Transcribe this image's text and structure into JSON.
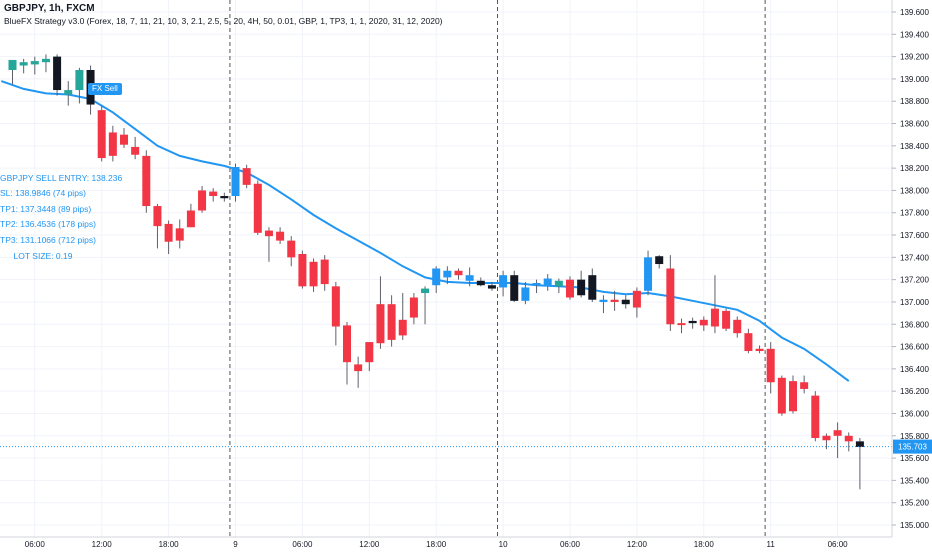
{
  "header": {
    "symbol_line": "GBPJPY, 1h, FXCM",
    "strategy_line": "BlueFX Strategy v3.0 (Forex, 18, 7, 11, 21, 10, 3, 2.1, 2.5, 5, 20, 4H, 50, 0.01, GBP, 1, TP3, 1, 1, 2020, 31, 12, 2020)"
  },
  "signal": {
    "label": "FX Sell"
  },
  "strategy_panel": {
    "entry": "GBPJPY SELL ENTRY: 138.236",
    "sl": "SL: 138.9846 (74 pips)",
    "tp1": "TP1: 137.3448 (89 pips)",
    "tp2": "TP2: 136.4536 (178 pips)",
    "tp3": "TP3: 131.1066 (712 pips)",
    "lot": "LOT SIZE: 0.19"
  },
  "colors": {
    "bull": "#26a69a",
    "bear": "#f23645",
    "neutral": "#131722",
    "highlight": "#2196f3",
    "ma": "#2196f3",
    "price_line": "#2196f3",
    "grid": "#e6e6e6"
  },
  "price_tag": {
    "value": "135.703"
  },
  "chart_data": {
    "type": "candlestick",
    "ylim": [
      134.85,
      139.72
    ],
    "y_ticks": [
      "139.600",
      "139.400",
      "139.200",
      "139.000",
      "138.800",
      "138.600",
      "138.400",
      "138.200",
      "138.000",
      "137.800",
      "137.600",
      "137.400",
      "137.200",
      "137.000",
      "136.800",
      "136.600",
      "136.400",
      "136.200",
      "136.000",
      "135.800",
      "135.600",
      "135.400",
      "135.200",
      "135.000"
    ],
    "x_ticks": [
      {
        "label": "06:00",
        "bar": 2
      },
      {
        "label": "12:00",
        "bar": 8
      },
      {
        "label": "18:00",
        "bar": 14
      },
      {
        "label": "9",
        "bar": 20
      },
      {
        "label": "06:00",
        "bar": 26
      },
      {
        "label": "12:00",
        "bar": 32
      },
      {
        "label": "18:00",
        "bar": 38
      },
      {
        "label": "10",
        "bar": 44
      },
      {
        "label": "06:00",
        "bar": 50
      },
      {
        "label": "12:00",
        "bar": 56
      },
      {
        "label": "18:00",
        "bar": 62
      },
      {
        "label": "11",
        "bar": 68
      },
      {
        "label": "06:00",
        "bar": 74
      }
    ],
    "day_separators": [
      19.5,
      43.5,
      67.5
    ],
    "current_price": 135.703,
    "candles": [
      {
        "o": 139.08,
        "h": 139.14,
        "l": 138.95,
        "c": 139.17,
        "k": "up"
      },
      {
        "o": 139.12,
        "h": 139.18,
        "l": 139.05,
        "c": 139.15,
        "k": "up"
      },
      {
        "o": 139.13,
        "h": 139.2,
        "l": 139.04,
        "c": 139.16,
        "k": "up"
      },
      {
        "o": 139.15,
        "h": 139.22,
        "l": 139.06,
        "c": 139.18,
        "k": "up"
      },
      {
        "o": 139.2,
        "h": 139.22,
        "l": 138.85,
        "c": 138.9,
        "k": "neutral"
      },
      {
        "o": 138.9,
        "h": 138.98,
        "l": 138.76,
        "c": 138.86,
        "k": "up"
      },
      {
        "o": 138.9,
        "h": 139.1,
        "l": 138.78,
        "c": 139.08,
        "k": "up"
      },
      {
        "o": 139.08,
        "h": 139.12,
        "l": 138.68,
        "c": 138.77,
        "k": "neutral"
      },
      {
        "o": 138.72,
        "h": 138.76,
        "l": 138.26,
        "c": 138.29,
        "k": "down"
      },
      {
        "o": 138.52,
        "h": 138.58,
        "l": 138.26,
        "c": 138.31,
        "k": "down"
      },
      {
        "o": 138.5,
        "h": 138.56,
        "l": 138.38,
        "c": 138.41,
        "k": "down"
      },
      {
        "o": 138.39,
        "h": 138.48,
        "l": 138.28,
        "c": 138.32,
        "k": "down"
      },
      {
        "o": 138.31,
        "h": 138.36,
        "l": 137.8,
        "c": 137.86,
        "k": "down"
      },
      {
        "o": 137.86,
        "h": 137.88,
        "l": 137.48,
        "c": 137.68,
        "k": "down"
      },
      {
        "o": 137.7,
        "h": 137.73,
        "l": 137.43,
        "c": 137.54,
        "k": "down"
      },
      {
        "o": 137.66,
        "h": 137.74,
        "l": 137.48,
        "c": 137.55,
        "k": "down"
      },
      {
        "o": 137.82,
        "h": 137.88,
        "l": 137.7,
        "c": 137.67,
        "k": "down"
      },
      {
        "o": 138.0,
        "h": 138.04,
        "l": 137.8,
        "c": 137.82,
        "k": "down"
      },
      {
        "o": 137.99,
        "h": 138.02,
        "l": 137.9,
        "c": 137.95,
        "k": "down"
      },
      {
        "o": 137.95,
        "h": 137.98,
        "l": 137.9,
        "c": 137.93,
        "k": "neutral"
      },
      {
        "o": 137.95,
        "h": 138.24,
        "l": 137.9,
        "c": 138.21,
        "k": "highlight"
      },
      {
        "o": 138.2,
        "h": 138.23,
        "l": 138.02,
        "c": 138.05,
        "k": "down"
      },
      {
        "o": 138.06,
        "h": 138.09,
        "l": 137.6,
        "c": 137.62,
        "k": "down"
      },
      {
        "o": 137.64,
        "h": 137.67,
        "l": 137.36,
        "c": 137.59,
        "k": "down"
      },
      {
        "o": 137.63,
        "h": 137.67,
        "l": 137.52,
        "c": 137.55,
        "k": "down"
      },
      {
        "o": 137.55,
        "h": 137.59,
        "l": 137.32,
        "c": 137.4,
        "k": "down"
      },
      {
        "o": 137.43,
        "h": 137.46,
        "l": 137.12,
        "c": 137.14,
        "k": "down"
      },
      {
        "o": 137.36,
        "h": 137.39,
        "l": 137.09,
        "c": 137.14,
        "k": "down"
      },
      {
        "o": 137.38,
        "h": 137.42,
        "l": 137.1,
        "c": 137.16,
        "k": "down"
      },
      {
        "o": 137.14,
        "h": 137.18,
        "l": 136.61,
        "c": 136.78,
        "k": "down"
      },
      {
        "o": 136.79,
        "h": 136.82,
        "l": 136.26,
        "c": 136.46,
        "k": "down"
      },
      {
        "o": 136.44,
        "h": 136.51,
        "l": 136.23,
        "c": 136.38,
        "k": "down"
      },
      {
        "o": 136.46,
        "h": 136.63,
        "l": 136.38,
        "c": 136.64,
        "k": "down"
      },
      {
        "o": 136.98,
        "h": 137.23,
        "l": 136.58,
        "c": 136.63,
        "k": "down"
      },
      {
        "o": 136.98,
        "h": 137.06,
        "l": 136.6,
        "c": 136.66,
        "k": "down"
      },
      {
        "o": 136.84,
        "h": 137.08,
        "l": 136.66,
        "c": 136.7,
        "k": "down"
      },
      {
        "o": 137.04,
        "h": 137.08,
        "l": 136.8,
        "c": 136.86,
        "k": "down"
      },
      {
        "o": 137.12,
        "h": 137.14,
        "l": 136.8,
        "c": 137.08,
        "k": "up"
      },
      {
        "o": 137.15,
        "h": 137.32,
        "l": 137.08,
        "c": 137.3,
        "k": "highlight"
      },
      {
        "o": 137.22,
        "h": 137.32,
        "l": 137.16,
        "c": 137.28,
        "k": "highlight"
      },
      {
        "o": 137.28,
        "h": 137.3,
        "l": 137.2,
        "c": 137.24,
        "k": "down"
      },
      {
        "o": 137.24,
        "h": 137.31,
        "l": 137.14,
        "c": 137.19,
        "k": "highlight"
      },
      {
        "o": 137.19,
        "h": 137.22,
        "l": 137.14,
        "c": 137.15,
        "k": "neutral"
      },
      {
        "o": 137.15,
        "h": 137.18,
        "l": 137.1,
        "c": 137.12,
        "k": "neutral"
      },
      {
        "o": 137.24,
        "h": 137.28,
        "l": 137.05,
        "c": 137.13,
        "k": "highlight"
      },
      {
        "o": 137.24,
        "h": 137.28,
        "l": 137.0,
        "c": 137.01,
        "k": "neutral"
      },
      {
        "o": 137.01,
        "h": 137.18,
        "l": 136.98,
        "c": 137.13,
        "k": "highlight"
      },
      {
        "o": 137.16,
        "h": 137.2,
        "l": 137.08,
        "c": 137.17,
        "k": "highlight"
      },
      {
        "o": 137.21,
        "h": 137.25,
        "l": 137.1,
        "c": 137.14,
        "k": "highlight"
      },
      {
        "o": 137.14,
        "h": 137.21,
        "l": 137.08,
        "c": 137.19,
        "k": "up"
      },
      {
        "o": 137.2,
        "h": 137.23,
        "l": 137.02,
        "c": 137.04,
        "k": "down"
      },
      {
        "o": 137.2,
        "h": 137.28,
        "l": 137.04,
        "c": 137.06,
        "k": "neutral"
      },
      {
        "o": 137.24,
        "h": 137.3,
        "l": 137.0,
        "c": 137.02,
        "k": "neutral"
      },
      {
        "o": 137.02,
        "h": 137.06,
        "l": 136.9,
        "c": 137.0,
        "k": "highlight"
      },
      {
        "o": 137.0,
        "h": 137.1,
        "l": 136.92,
        "c": 137.02,
        "k": "down"
      },
      {
        "o": 137.02,
        "h": 137.06,
        "l": 136.94,
        "c": 136.98,
        "k": "neutral"
      },
      {
        "o": 137.1,
        "h": 137.13,
        "l": 136.86,
        "c": 136.95,
        "k": "down"
      },
      {
        "o": 137.4,
        "h": 137.46,
        "l": 137.06,
        "c": 137.1,
        "k": "highlight"
      },
      {
        "o": 137.41,
        "h": 137.42,
        "l": 137.3,
        "c": 137.34,
        "k": "neutral"
      },
      {
        "o": 137.3,
        "h": 137.42,
        "l": 136.74,
        "c": 136.8,
        "k": "down"
      },
      {
        "o": 136.81,
        "h": 136.85,
        "l": 136.72,
        "c": 136.8,
        "k": "down"
      },
      {
        "o": 136.83,
        "h": 136.86,
        "l": 136.76,
        "c": 136.81,
        "k": "neutral"
      },
      {
        "o": 136.84,
        "h": 136.87,
        "l": 136.74,
        "c": 136.79,
        "k": "down"
      },
      {
        "o": 136.94,
        "h": 137.24,
        "l": 136.72,
        "c": 136.78,
        "k": "down"
      },
      {
        "o": 136.92,
        "h": 136.94,
        "l": 136.74,
        "c": 136.76,
        "k": "down"
      },
      {
        "o": 136.84,
        "h": 136.87,
        "l": 136.68,
        "c": 136.72,
        "k": "down"
      },
      {
        "o": 136.72,
        "h": 136.76,
        "l": 136.54,
        "c": 136.56,
        "k": "down"
      },
      {
        "o": 136.58,
        "h": 136.61,
        "l": 136.54,
        "c": 136.56,
        "k": "down"
      },
      {
        "o": 136.58,
        "h": 136.64,
        "l": 136.18,
        "c": 136.28,
        "k": "down"
      },
      {
        "o": 136.32,
        "h": 136.34,
        "l": 135.98,
        "c": 136.0,
        "k": "down"
      },
      {
        "o": 136.29,
        "h": 136.34,
        "l": 136.0,
        "c": 136.02,
        "k": "down"
      },
      {
        "o": 136.28,
        "h": 136.34,
        "l": 136.18,
        "c": 136.22,
        "k": "down"
      },
      {
        "o": 136.16,
        "h": 136.2,
        "l": 135.75,
        "c": 135.78,
        "k": "down"
      },
      {
        "o": 135.8,
        "h": 135.82,
        "l": 135.68,
        "c": 135.76,
        "k": "down"
      },
      {
        "o": 135.85,
        "h": 135.92,
        "l": 135.6,
        "c": 135.8,
        "k": "down"
      },
      {
        "o": 135.8,
        "h": 135.83,
        "l": 135.66,
        "c": 135.75,
        "k": "down"
      },
      {
        "o": 135.75,
        "h": 135.78,
        "l": 135.32,
        "c": 135.7,
        "k": "neutral"
      }
    ],
    "ma_series": [
      {
        "bar": -1,
        "v": 138.98
      },
      {
        "bar": 1,
        "v": 138.91
      },
      {
        "bar": 3,
        "v": 138.87
      },
      {
        "bar": 5,
        "v": 138.86
      },
      {
        "bar": 7,
        "v": 138.82
      },
      {
        "bar": 9,
        "v": 138.7
      },
      {
        "bar": 11,
        "v": 138.55
      },
      {
        "bar": 13,
        "v": 138.4
      },
      {
        "bar": 15,
        "v": 138.31
      },
      {
        "bar": 17,
        "v": 138.26
      },
      {
        "bar": 19,
        "v": 138.22
      },
      {
        "bar": 21,
        "v": 138.16
      },
      {
        "bar": 23,
        "v": 138.05
      },
      {
        "bar": 25,
        "v": 137.92
      },
      {
        "bar": 27,
        "v": 137.78
      },
      {
        "bar": 29,
        "v": 137.66
      },
      {
        "bar": 31,
        "v": 137.55
      },
      {
        "bar": 33,
        "v": 137.44
      },
      {
        "bar": 35,
        "v": 137.32
      },
      {
        "bar": 37,
        "v": 137.22
      },
      {
        "bar": 39,
        "v": 137.18
      },
      {
        "bar": 41,
        "v": 137.17
      },
      {
        "bar": 43,
        "v": 137.17
      },
      {
        "bar": 45,
        "v": 137.17
      },
      {
        "bar": 47,
        "v": 137.15
      },
      {
        "bar": 49,
        "v": 137.14
      },
      {
        "bar": 51,
        "v": 137.13
      },
      {
        "bar": 53,
        "v": 137.09
      },
      {
        "bar": 55,
        "v": 137.07
      },
      {
        "bar": 57,
        "v": 137.08
      },
      {
        "bar": 59,
        "v": 137.05
      },
      {
        "bar": 61,
        "v": 137.01
      },
      {
        "bar": 63,
        "v": 136.97
      },
      {
        "bar": 65,
        "v": 136.93
      },
      {
        "bar": 67,
        "v": 136.83
      },
      {
        "bar": 69,
        "v": 136.68
      },
      {
        "bar": 71,
        "v": 136.58
      },
      {
        "bar": 73,
        "v": 136.44
      },
      {
        "bar": 75,
        "v": 136.29
      }
    ]
  }
}
